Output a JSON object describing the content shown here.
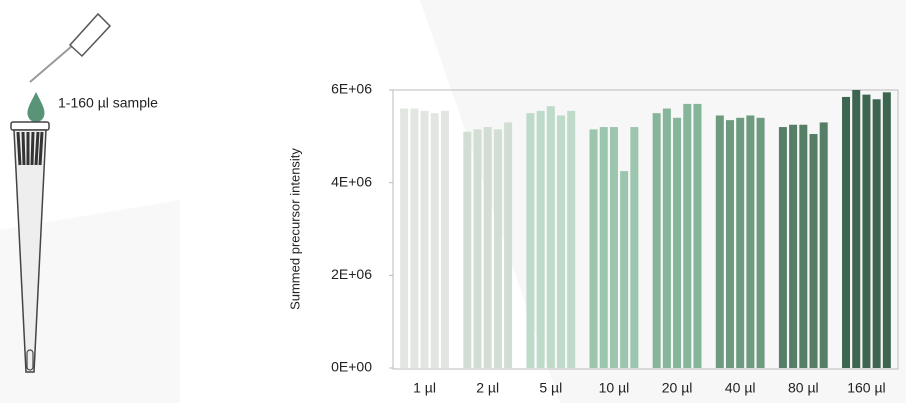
{
  "illustration": {
    "label": "1-160 µl sample"
  },
  "chart_data": {
    "type": "grouped-bar",
    "y_label": "Summed precursor intensity",
    "ylim": [
      0,
      6000000
    ],
    "yticks": [
      {
        "value": 0,
        "label": "0E+00"
      },
      {
        "value": 2000000,
        "label": "2E+06"
      },
      {
        "value": 4000000,
        "label": "4E+06"
      },
      {
        "value": 6000000,
        "label": "6E+06"
      }
    ],
    "groups": [
      {
        "label": "1 µl",
        "color": "#e2e6e0",
        "values": [
          5600000,
          5600000,
          5550000,
          5500000,
          5550000
        ]
      },
      {
        "label": "2 µl",
        "color": "#d2ddd4",
        "values": [
          5100000,
          5150000,
          5200000,
          5150000,
          5300000
        ]
      },
      {
        "label": "5 µl",
        "color": "#bddbc8",
        "values": [
          5500000,
          5550000,
          5650000,
          5450000,
          5550000
        ]
      },
      {
        "label": "10 µl",
        "color": "#9cc5ad",
        "values": [
          5150000,
          5200000,
          5200000,
          4250000,
          5200000
        ]
      },
      {
        "label": "20 µl",
        "color": "#86b69a",
        "values": [
          5500000,
          5600000,
          5400000,
          5700000,
          5700000
        ]
      },
      {
        "label": "40 µl",
        "color": "#6e9b80",
        "values": [
          5450000,
          5350000,
          5400000,
          5450000,
          5400000
        ]
      },
      {
        "label": "80 µl",
        "color": "#567e67",
        "values": [
          5200000,
          5250000,
          5250000,
          5050000,
          5300000
        ]
      },
      {
        "label": "160 µl",
        "color": "#3e654f",
        "values": [
          5850000,
          6000000,
          5900000,
          5800000,
          5950000
        ]
      }
    ]
  }
}
